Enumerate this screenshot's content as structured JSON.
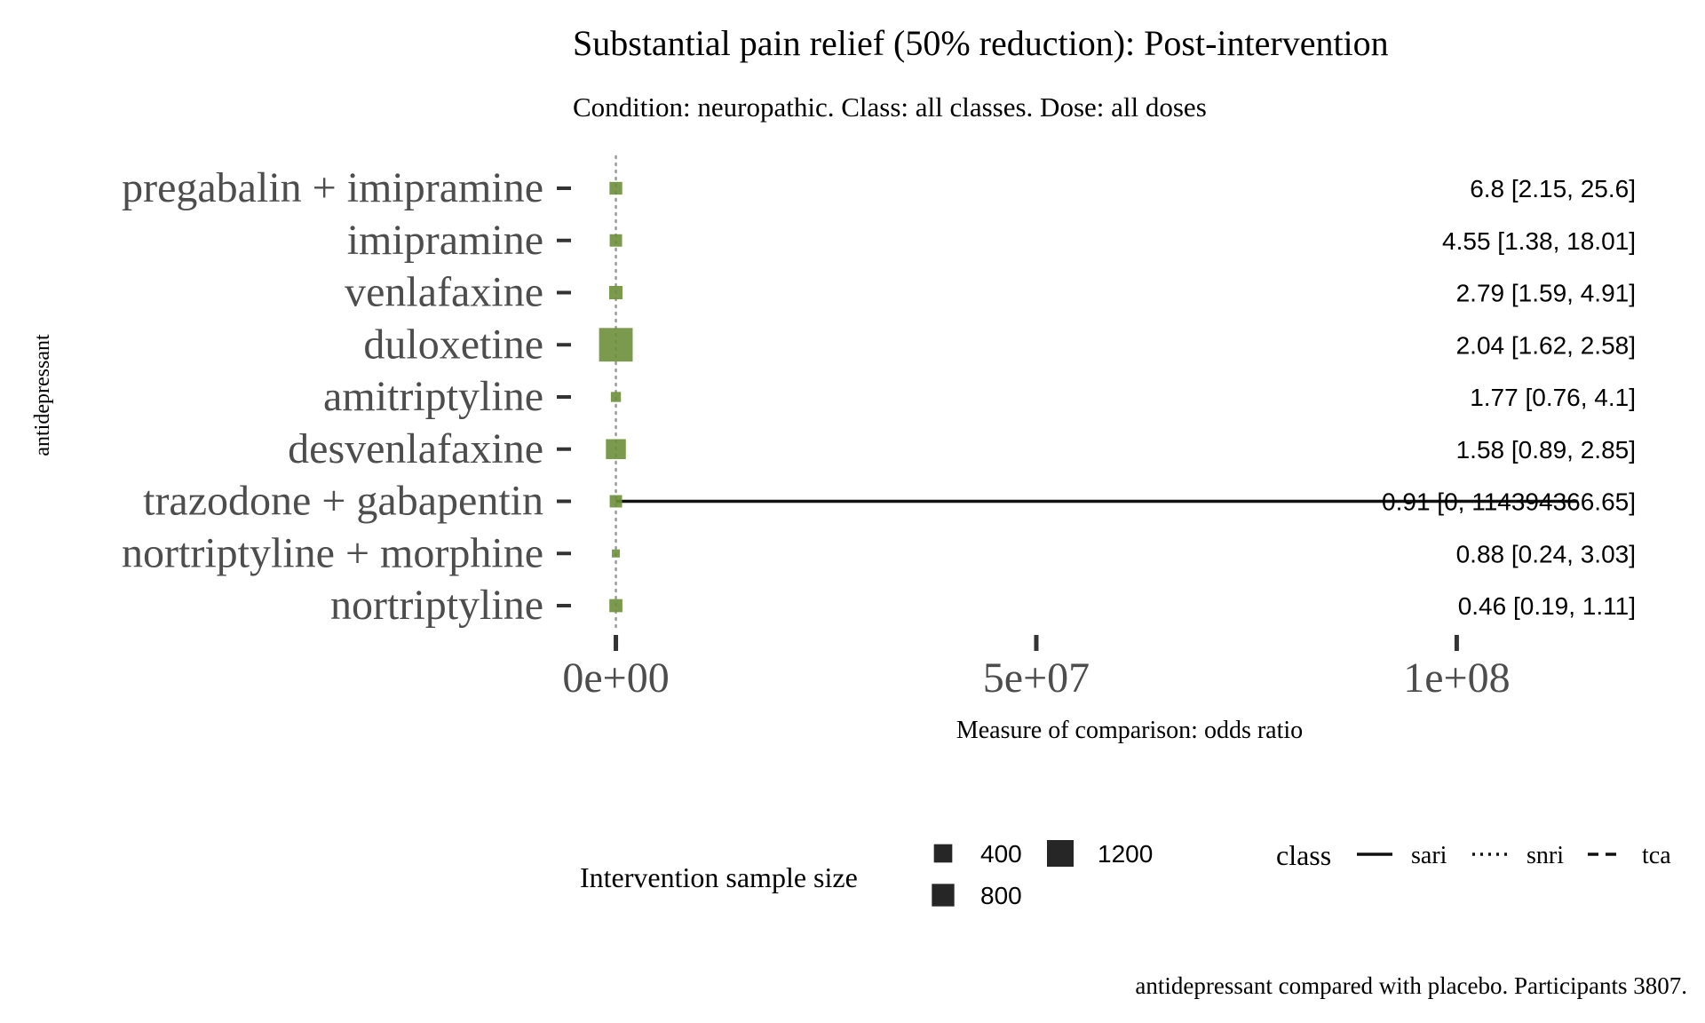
{
  "chart_data": {
    "type": "forest",
    "title": "Substantial pain relief (50% reduction): Post-intervention",
    "subtitle": "Condition: neuropathic. Class: all classes. Dose: all doses",
    "ylabel": "antidepressant",
    "xlabel": "Measure of comparison: odds ratio",
    "caption": "antidepressant compared with placebo. Participants 3807.",
    "xlim": [
      -6500000,
      129000000
    ],
    "xticks": [
      {
        "value": 0,
        "label": "0e+00"
      },
      {
        "value": 50000000,
        "label": "5e+07"
      },
      {
        "value": 100000000,
        "label": "1e+08"
      }
    ],
    "reference_line": 1,
    "rows": [
      {
        "name": "pregabalin + imipramine",
        "estimate": 6.8,
        "lower": 2.15,
        "upper": 25.6,
        "sample_size": 160,
        "class": "tca",
        "label": "6.8 [2.15, 25.6]"
      },
      {
        "name": "imipramine",
        "estimate": 4.55,
        "lower": 1.38,
        "upper": 18.01,
        "sample_size": 150,
        "class": "tca",
        "label": "4.55 [1.38, 18.01]"
      },
      {
        "name": "venlafaxine",
        "estimate": 2.79,
        "lower": 1.59,
        "upper": 4.91,
        "sample_size": 180,
        "class": "snri",
        "label": "2.79 [1.59, 4.91]"
      },
      {
        "name": "duloxetine",
        "estimate": 2.04,
        "lower": 1.62,
        "upper": 2.58,
        "sample_size": 1400,
        "class": "snri",
        "label": "2.04 [1.62, 2.58]"
      },
      {
        "name": "amitriptyline",
        "estimate": 1.77,
        "lower": 0.76,
        "upper": 4.1,
        "sample_size": 90,
        "class": "tca",
        "label": "1.77 [0.76, 4.1]"
      },
      {
        "name": "desvenlafaxine",
        "estimate": 1.58,
        "lower": 0.89,
        "upper": 2.85,
        "sample_size": 450,
        "class": "snri",
        "label": "1.58 [0.89, 2.85]"
      },
      {
        "name": "trazodone + gabapentin",
        "estimate": 0.91,
        "lower": 0,
        "upper": 114394366.65,
        "sample_size": 150,
        "class": "sari",
        "label": "0.91 [0, 114394366.65]"
      },
      {
        "name": "nortriptyline + morphine",
        "estimate": 0.88,
        "lower": 0.24,
        "upper": 3.03,
        "sample_size": 50,
        "class": "tca",
        "label": "0.88 [0.24, 3.03]"
      },
      {
        "name": "nortriptyline",
        "estimate": 0.46,
        "lower": 0.19,
        "upper": 1.11,
        "sample_size": 170,
        "class": "tca",
        "label": "0.46 [0.19, 1.11]"
      }
    ],
    "legend": {
      "size_title": "Intervention sample size",
      "size_items": [
        {
          "value": 400,
          "label": "400"
        },
        {
          "value": 800,
          "label": "800"
        },
        {
          "value": 1200,
          "label": "1200"
        }
      ],
      "class_title": "class",
      "class_items": [
        {
          "name": "sari",
          "dash": "solid"
        },
        {
          "name": "snri",
          "dash": "dotted"
        },
        {
          "name": "tca",
          "dash": "dashed"
        }
      ],
      "placement": "bottom"
    },
    "colors": {
      "marker": "#6e8f3a",
      "line": "#111111",
      "tick": "#333333",
      "label": "#4d4d4d",
      "refline": "#999999"
    },
    "grid": false
  }
}
